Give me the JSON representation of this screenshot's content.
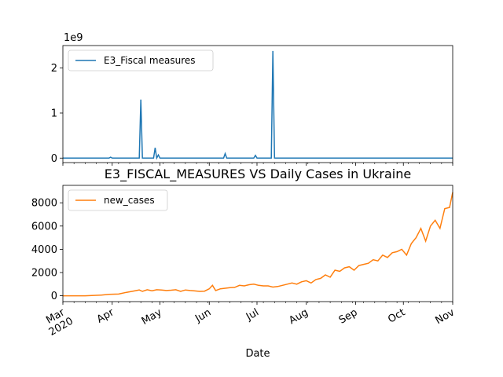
{
  "chart_data": [
    {
      "type": "line",
      "title": "",
      "xlabel": "",
      "ylabel": "",
      "y_multiplier_label": "1e9",
      "ylim": [
        -0.1,
        2.5
      ],
      "yticks": [
        0,
        1,
        2
      ],
      "xlim": [
        "2020-03-01",
        "2020-11-01"
      ],
      "legend_position": "upper left",
      "series": [
        {
          "name": "E3_Fiscal measures",
          "color": "#1f77b4",
          "x": [
            "2020-03-01",
            "2020-03-30",
            "2020-03-31",
            "2020-04-01",
            "2020-04-18",
            "2020-04-19",
            "2020-04-20",
            "2020-04-21",
            "2020-04-27",
            "2020-04-28",
            "2020-04-29",
            "2020-04-30",
            "2020-05-01",
            "2020-05-02",
            "2020-06-10",
            "2020-06-11",
            "2020-06-12",
            "2020-06-29",
            "2020-06-30",
            "2020-07-01",
            "2020-07-10",
            "2020-07-11",
            "2020-07-12",
            "2020-08-24",
            "2020-08-25",
            "2020-11-01"
          ],
          "y": [
            0,
            0,
            0.02,
            0,
            0,
            1.3,
            0,
            0,
            0,
            0.23,
            0,
            0.07,
            0,
            0,
            0,
            0.1,
            0,
            0,
            0.06,
            0,
            0,
            2.38,
            0,
            0,
            0,
            0
          ]
        }
      ]
    },
    {
      "type": "line",
      "title": "E3_FISCAL_MEASURES VS Daily Cases in Ukraine",
      "xlabel": "Date",
      "ylabel": "",
      "ylim": [
        -500,
        9500
      ],
      "yticks": [
        0,
        2000,
        4000,
        6000,
        8000
      ],
      "xlim": [
        "2020-03-01",
        "2020-11-01"
      ],
      "xtick_labels": [
        "Mar\n2020",
        "Apr",
        "May",
        "Jun",
        "Jul",
        "Aug",
        "Sep",
        "Oct",
        "Nov"
      ],
      "xtick_dates": [
        "2020-03-01",
        "2020-04-01",
        "2020-05-01",
        "2020-06-01",
        "2020-07-01",
        "2020-08-01",
        "2020-09-01",
        "2020-10-01",
        "2020-11-01"
      ],
      "legend_position": "upper left",
      "series": [
        {
          "name": "new_cases",
          "color": "#ff7f0e",
          "x": [
            "2020-03-01",
            "2020-03-15",
            "2020-03-25",
            "2020-03-30",
            "2020-04-05",
            "2020-04-10",
            "2020-04-15",
            "2020-04-18",
            "2020-04-20",
            "2020-04-23",
            "2020-04-26",
            "2020-04-29",
            "2020-05-02",
            "2020-05-05",
            "2020-05-08",
            "2020-05-11",
            "2020-05-14",
            "2020-05-17",
            "2020-05-20",
            "2020-05-23",
            "2020-05-26",
            "2020-05-29",
            "2020-06-01",
            "2020-06-03",
            "2020-06-05",
            "2020-06-08",
            "2020-06-11",
            "2020-06-14",
            "2020-06-17",
            "2020-06-20",
            "2020-06-23",
            "2020-06-26",
            "2020-06-29",
            "2020-07-02",
            "2020-07-05",
            "2020-07-08",
            "2020-07-11",
            "2020-07-14",
            "2020-07-17",
            "2020-07-20",
            "2020-07-23",
            "2020-07-26",
            "2020-07-29",
            "2020-08-01",
            "2020-08-04",
            "2020-08-07",
            "2020-08-10",
            "2020-08-13",
            "2020-08-16",
            "2020-08-19",
            "2020-08-22",
            "2020-08-25",
            "2020-08-28",
            "2020-08-31",
            "2020-09-03",
            "2020-09-06",
            "2020-09-09",
            "2020-09-12",
            "2020-09-15",
            "2020-09-18",
            "2020-09-21",
            "2020-09-24",
            "2020-09-27",
            "2020-09-30",
            "2020-10-03",
            "2020-10-06",
            "2020-10-09",
            "2020-10-12",
            "2020-10-15",
            "2020-10-18",
            "2020-10-21",
            "2020-10-24",
            "2020-10-27",
            "2020-10-30",
            "2020-11-01"
          ],
          "y": [
            0,
            3,
            60,
            120,
            150,
            300,
            420,
            500,
            380,
            520,
            430,
            520,
            500,
            450,
            480,
            520,
            380,
            500,
            450,
            420,
            380,
            400,
            600,
            900,
            450,
            600,
            650,
            700,
            720,
            900,
            850,
            950,
            1000,
            900,
            850,
            850,
            750,
            800,
            900,
            1000,
            1100,
            1000,
            1200,
            1300,
            1100,
            1400,
            1500,
            1800,
            1600,
            2200,
            2100,
            2400,
            2500,
            2200,
            2600,
            2700,
            2800,
            3100,
            3000,
            3500,
            3300,
            3700,
            3800,
            4000,
            3500,
            4500,
            5000,
            5800,
            4700,
            6000,
            6500,
            5800,
            7500,
            7600,
            8900
          ]
        }
      ]
    }
  ]
}
